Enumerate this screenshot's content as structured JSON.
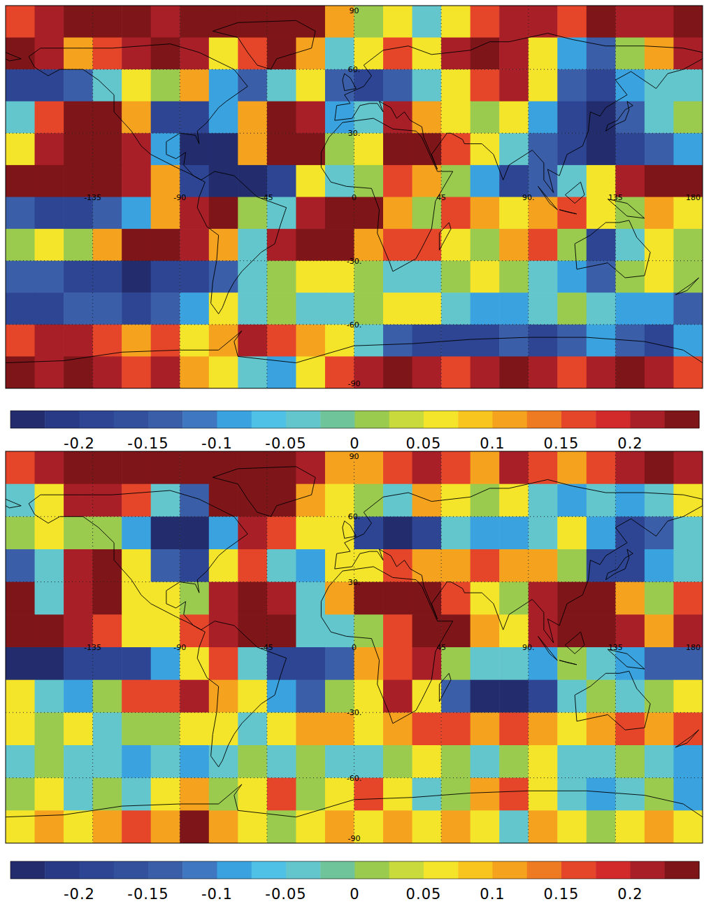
{
  "chart_data": [
    {
      "type": "heatmap",
      "x": [
        -172.5,
        -157.5,
        -142.5,
        -127.5,
        -112.5,
        -97.5,
        -82.5,
        -67.5,
        -52.5,
        -37.5,
        -22.5,
        -7.5,
        7.5,
        22.5,
        37.5,
        52.5,
        67.5,
        82.5,
        97.5,
        112.5,
        127.5,
        142.5,
        157.5,
        172.5
      ],
      "y": [
        82.5,
        67.5,
        52.5,
        37.5,
        22.5,
        7.5,
        -7.5,
        -22.5,
        -37.5,
        -52.5,
        -67.5,
        -82.5
      ],
      "values": [
        [
          0.15,
          0.2,
          0.25,
          0.25,
          0.25,
          0.2,
          0.25,
          0.25,
          0.25,
          0.25,
          0.25,
          0.1,
          0,
          0.05,
          -0.05,
          0.05,
          0.15,
          0.2,
          0.2,
          0.15,
          0.25,
          0.2,
          0.2,
          0.25
        ],
        [
          0.25,
          0.2,
          0.1,
          0.15,
          0.2,
          0.25,
          0.2,
          0.05,
          0.15,
          0.25,
          0.1,
          -0.05,
          0.05,
          0.15,
          0.05,
          0.2,
          0.25,
          0.2,
          0.05,
          -0.1,
          -0.15,
          0,
          0.1,
          0.2
        ],
        [
          -0.2,
          -0.2,
          -0.15,
          -0.05,
          0.05,
          0,
          0.1,
          -0.1,
          -0.15,
          -0.05,
          0.05,
          -0.15,
          -0.2,
          -0.15,
          -0.05,
          0.05,
          0.15,
          0.2,
          0.05,
          -0.15,
          -0.2,
          -0.1,
          -0.05,
          -0.05
        ],
        [
          -0.05,
          0.15,
          0.25,
          0.25,
          0.1,
          -0.2,
          -0.2,
          -0.1,
          0.1,
          0.25,
          0.2,
          -0.1,
          -0.05,
          0.2,
          0.1,
          0.05,
          0,
          0.05,
          -0.1,
          -0.2,
          -0.25,
          -0.15,
          -0.05,
          0
        ],
        [
          0.05,
          0.2,
          0.25,
          0.25,
          0.2,
          -0.1,
          -0.25,
          -0.25,
          0.1,
          0.25,
          0.25,
          0,
          0.05,
          0.25,
          0.25,
          0.15,
          0.05,
          -0.05,
          -0.15,
          -0.2,
          -0.25,
          -0.2,
          -0.15,
          -0.1
        ],
        [
          0.25,
          0.25,
          0.25,
          0.25,
          0.2,
          0.1,
          -0.2,
          -0.25,
          -0.25,
          -0.2,
          0.05,
          -0.05,
          0,
          0.15,
          0.1,
          0,
          -0.1,
          -0.2,
          -0.15,
          -0.05,
          0.05,
          0.2,
          0.25,
          0.25
        ],
        [
          -0.15,
          -0.2,
          -0.2,
          -0.15,
          -0.1,
          0.1,
          0.2,
          0.25,
          0,
          -0.05,
          0.2,
          0.25,
          0.25,
          0.1,
          0,
          0.15,
          0.1,
          0.05,
          0.1,
          0.15,
          0.05,
          0,
          0.1,
          0.05
        ],
        [
          0,
          0.05,
          0,
          0.1,
          0.25,
          0.25,
          0.2,
          0.1,
          -0.05,
          0.2,
          0.25,
          0.25,
          0.1,
          0.15,
          0.15,
          0.05,
          0,
          0.1,
          0.15,
          0,
          -0.2,
          -0.05,
          0.05,
          0
        ],
        [
          -0.15,
          -0.15,
          -0.2,
          -0.2,
          -0.25,
          -0.2,
          -0.2,
          -0.15,
          -0.05,
          0,
          0.05,
          0.05,
          0,
          -0.05,
          -0.05,
          0,
          0.05,
          0,
          -0.05,
          -0.1,
          -0.15,
          0,
          0.05,
          0
        ],
        [
          -0.2,
          -0.2,
          -0.15,
          -0.15,
          -0.2,
          -0.15,
          -0.1,
          0.05,
          -0.05,
          0,
          -0.05,
          -0.05,
          0,
          0.05,
          0.05,
          -0.05,
          -0.1,
          -0.1,
          -0.05,
          0,
          -0.05,
          -0.1,
          -0.1,
          -0.15
        ],
        [
          0.15,
          0.2,
          0.2,
          0.15,
          0.1,
          0.15,
          0.05,
          0.1,
          0.2,
          0.15,
          0.1,
          0.05,
          -0.05,
          -0.15,
          -0.2,
          -0.2,
          -0.2,
          -0.15,
          -0.2,
          -0.15,
          -0.1,
          -0.15,
          -0.2,
          -0.1
        ],
        [
          0.25,
          0.2,
          0.25,
          0.2,
          0.15,
          0.2,
          0.1,
          0.05,
          -0.05,
          -0.1,
          0.05,
          0.15,
          0.2,
          0.25,
          0.2,
          0.15,
          0.2,
          0.25,
          0.2,
          0.15,
          0.2,
          0.25,
          0.2,
          0.15
        ]
      ],
      "xlim": [
        -180,
        180
      ],
      "ylim": [
        -90,
        90
      ],
      "xticks": [
        -135,
        -90,
        -45,
        0,
        45,
        {
          "value": 90,
          "label": "90."
        },
        135,
        180
      ],
      "yticks": [
        90,
        {
          "value": 60,
          "label": "60."
        },
        {
          "value": 30,
          "label": "30."
        },
        {
          "value": -30,
          "label": "-30."
        },
        {
          "value": -60,
          "label": "-60."
        },
        -90
      ],
      "grid": true,
      "colorbar": {
        "range": [
          -0.25,
          0.25
        ],
        "ticks": [
          -0.2,
          -0.15,
          -0.1,
          -0.05,
          0,
          0.05,
          0.1,
          0.15,
          0.2
        ]
      }
    },
    {
      "type": "heatmap",
      "x": [
        -172.5,
        -157.5,
        -142.5,
        -127.5,
        -112.5,
        -97.5,
        -82.5,
        -67.5,
        -52.5,
        -37.5,
        -22.5,
        -7.5,
        7.5,
        22.5,
        37.5,
        52.5,
        67.5,
        82.5,
        97.5,
        112.5,
        127.5,
        142.5,
        157.5,
        172.5
      ],
      "y": [
        82.5,
        67.5,
        52.5,
        37.5,
        22.5,
        7.5,
        -7.5,
        -22.5,
        -37.5,
        -52.5,
        -67.5,
        -82.5
      ],
      "values": [
        [
          0.15,
          0.2,
          0.25,
          0.25,
          0.25,
          0.25,
          0.25,
          0.25,
          0.25,
          0.25,
          0.2,
          0.1,
          0.1,
          0.15,
          0.2,
          0.15,
          0.1,
          0.2,
          0.15,
          0.1,
          0.15,
          0.2,
          0.25,
          0.2
        ],
        [
          -0.05,
          0.05,
          0.2,
          0.2,
          0.15,
          -0.05,
          -0.15,
          0.25,
          0.25,
          0.25,
          0.1,
          0.05,
          0,
          -0.05,
          0.1,
          0.05,
          0,
          0.05,
          -0.05,
          -0.1,
          -0.05,
          -0.1,
          -0.05,
          0.05
        ],
        [
          0,
          0.05,
          0,
          0,
          -0.1,
          -0.25,
          -0.25,
          -0.1,
          0.2,
          0.15,
          0.05,
          0.05,
          -0.2,
          -0.25,
          -0.2,
          -0.05,
          -0.1,
          -0.1,
          -0.05,
          0.05,
          -0.1,
          -0.2,
          -0.15,
          -0.05
        ],
        [
          -0.15,
          -0.05,
          0.2,
          0.25,
          0.05,
          -0.15,
          -0.2,
          0.05,
          0.15,
          -0.05,
          -0.1,
          0.05,
          0.05,
          0.15,
          0.1,
          0.1,
          0.15,
          0.1,
          0.1,
          0,
          -0.2,
          -0.2,
          -0.1,
          -0.05
        ],
        [
          0.25,
          -0.05,
          0.2,
          0.25,
          0.05,
          0.05,
          0,
          0.2,
          0.25,
          0.2,
          -0.05,
          0.1,
          0.25,
          0.25,
          0.25,
          0.15,
          0.05,
          0,
          0.2,
          0.25,
          0.25,
          0.1,
          0,
          0.15
        ],
        [
          0.25,
          0.25,
          0.2,
          0.15,
          0.05,
          0.05,
          0.15,
          0.2,
          0.25,
          0.25,
          -0.05,
          -0.05,
          0,
          0.15,
          0.25,
          0.25,
          0.1,
          0.05,
          0.2,
          0.25,
          0.25,
          0.2,
          0.1,
          0.2
        ],
        [
          -0.25,
          -0.25,
          -0.2,
          -0.2,
          -0.2,
          -0.1,
          0.05,
          0.15,
          -0.05,
          -0.2,
          -0.2,
          -0.15,
          0.1,
          0.15,
          0.2,
          0,
          -0.05,
          -0.05,
          -0.1,
          0,
          -0.05,
          -0.1,
          -0.15,
          -0.15
        ],
        [
          0.05,
          -0.05,
          -0.1,
          0,
          0.15,
          0.15,
          0.2,
          0.1,
          0.05,
          -0.1,
          -0.15,
          0,
          0.05,
          0.2,
          0.05,
          -0.15,
          -0.25,
          -0.25,
          -0.2,
          -0.05,
          0,
          -0.05,
          0,
          0.05
        ],
        [
          0.05,
          0,
          0.05,
          -0.05,
          0,
          0,
          0.05,
          0.05,
          -0.05,
          0.05,
          0.1,
          0.1,
          0.05,
          0.1,
          0.15,
          0.15,
          0.1,
          0.15,
          0.1,
          0.05,
          0.1,
          0.15,
          0.1,
          0.15
        ],
        [
          -0.05,
          0,
          -0.05,
          -0.05,
          -0.1,
          -0.05,
          -0.1,
          -0.05,
          0,
          -0.05,
          0,
          -0.05,
          -0.05,
          0,
          0.05,
          0,
          -0.05,
          0,
          0.05,
          -0.05,
          -0.05,
          0,
          -0.05,
          -0.1
        ],
        [
          0,
          0.05,
          -0.05,
          0,
          -0.05,
          0.05,
          0.1,
          0,
          0.05,
          0.15,
          0,
          0.05,
          0.15,
          0.05,
          -0.05,
          0,
          0.1,
          0.15,
          0.05,
          -0.05,
          -0.1,
          -0.05,
          0,
          -0.1
        ],
        [
          0.05,
          0.1,
          0.05,
          0.1,
          0.15,
          0.1,
          0.25,
          0.1,
          0.05,
          0,
          0.05,
          0.1,
          0.05,
          0.1,
          0.05,
          0.1,
          0.05,
          -0.05,
          0.1,
          0.05,
          0,
          0.05,
          0.1,
          0.05
        ]
      ],
      "xlim": [
        -180,
        180
      ],
      "ylim": [
        -90,
        90
      ],
      "xticks": [
        -135,
        -90,
        -45,
        0,
        45,
        {
          "value": 90,
          "label": "90."
        },
        135,
        180
      ],
      "yticks": [
        90,
        {
          "value": 60,
          "label": "60."
        },
        {
          "value": 30,
          "label": "30."
        },
        {
          "value": -30,
          "label": "-30."
        },
        {
          "value": -60,
          "label": "-60."
        },
        -90
      ],
      "grid": true,
      "colorbar": {
        "range": [
          -0.25,
          0.25
        ],
        "ticks": [
          -0.2,
          -0.15,
          -0.1,
          -0.05,
          0,
          0.05,
          0.1,
          0.15,
          0.2
        ]
      }
    }
  ]
}
